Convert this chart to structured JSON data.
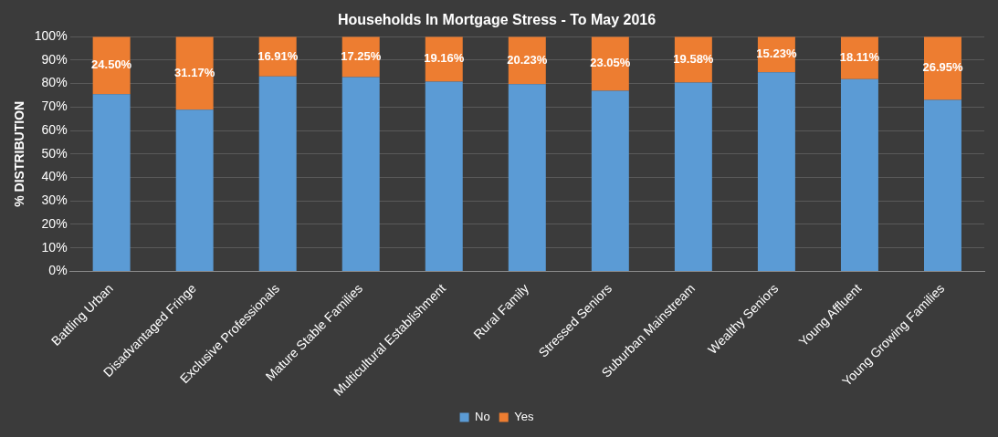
{
  "chart_data": {
    "type": "bar",
    "title": "Households In Mortgage Stress - To May 2016",
    "ylabel": "% DISTRIBUTION",
    "categories": [
      "Battling Urban",
      "Disadvantaged Fringe",
      "Exclusive Professionals",
      "Mature Stable Families",
      "Multicultural Establishment",
      "Rural Family",
      "Stressed Seniors",
      "Suburban Mainstream",
      "Wealthy Seniors",
      "Young Affluent",
      "Young Growing Families"
    ],
    "stacked": true,
    "series": [
      {
        "name": "No",
        "color": "#5b9bd5",
        "values": [
          75.5,
          68.83,
          83.09,
          82.75,
          80.84,
          79.77,
          76.95,
          80.42,
          84.77,
          81.89,
          73.05
        ]
      },
      {
        "name": "Yes",
        "color": "#ed7d31",
        "values": [
          24.5,
          31.17,
          16.91,
          17.25,
          19.16,
          20.23,
          23.05,
          19.58,
          15.23,
          18.11,
          26.95
        ],
        "value_labels": [
          "24.50%",
          "31.17%",
          "16.91%",
          "17.25%",
          "19.16%",
          "20.23%",
          "23.05%",
          "19.58%",
          "15.23%",
          "18.11%",
          "26.95%"
        ]
      }
    ],
    "ylim": [
      0,
      100
    ],
    "yticks": [
      {
        "value": 0,
        "label": "0%"
      },
      {
        "value": 10,
        "label": "10%"
      },
      {
        "value": 20,
        "label": "20%"
      },
      {
        "value": 30,
        "label": "30%"
      },
      {
        "value": 40,
        "label": "40%"
      },
      {
        "value": 50,
        "label": "50%"
      },
      {
        "value": 60,
        "label": "60%"
      },
      {
        "value": 70,
        "label": "70%"
      },
      {
        "value": 80,
        "label": "80%"
      },
      {
        "value": 90,
        "label": "90%"
      },
      {
        "value": 100,
        "label": "100%"
      }
    ],
    "grid": "y",
    "legend": "bottom"
  }
}
